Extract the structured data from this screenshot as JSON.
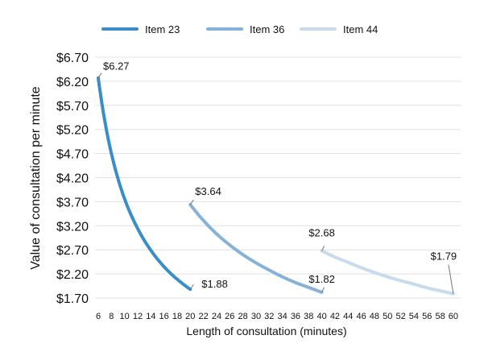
{
  "chart_data": {
    "type": "line",
    "title": "",
    "xlabel": "Length of consultation (minutes)",
    "ylabel": "Value of consultation per minute",
    "x_ticks": [
      6,
      8,
      10,
      12,
      14,
      16,
      18,
      20,
      22,
      24,
      26,
      28,
      30,
      32,
      34,
      36,
      38,
      40,
      42,
      44,
      46,
      48,
      50,
      52,
      54,
      56,
      58,
      60
    ],
    "y_ticks": [
      "$1.70",
      "$2.20",
      "$2.70",
      "$3.20",
      "$3.70",
      "$4.20",
      "$4.70",
      "$5.20",
      "$5.70",
      "$6.20",
      "$6.70"
    ],
    "ylim": [
      1.7,
      6.7
    ],
    "grid": "horizontal",
    "legend_position": "top",
    "series": [
      {
        "name": "Item 23",
        "color": "#3b8ec5",
        "x": [
          6,
          8,
          10,
          12,
          14,
          16,
          18,
          20
        ],
        "y": [
          6.27,
          4.7,
          3.76,
          3.14,
          2.69,
          2.35,
          2.09,
          1.88
        ],
        "labels": [
          {
            "text": "$6.27",
            "at": 0
          },
          {
            "text": "$1.88",
            "at": 7
          }
        ]
      },
      {
        "name": "Item 36",
        "color": "#86b2d8",
        "x": [
          20,
          22,
          24,
          26,
          28,
          30,
          32,
          34,
          36,
          38,
          40
        ],
        "y": [
          3.64,
          3.31,
          3.03,
          2.8,
          2.6,
          2.43,
          2.28,
          2.14,
          2.02,
          1.92,
          1.82
        ],
        "labels": [
          {
            "text": "$3.64",
            "at": 0
          },
          {
            "text": "$1.82",
            "at": 10
          }
        ]
      },
      {
        "name": "Item 44",
        "color": "#c8dbed",
        "x": [
          40,
          42,
          44,
          46,
          48,
          50,
          52,
          54,
          56,
          58,
          60
        ],
        "y": [
          2.68,
          2.55,
          2.44,
          2.33,
          2.23,
          2.14,
          2.06,
          1.99,
          1.91,
          1.85,
          1.79
        ],
        "labels": [
          {
            "text": "$2.68",
            "at": 0
          },
          {
            "text": "$1.79",
            "at": 10
          }
        ]
      }
    ]
  }
}
